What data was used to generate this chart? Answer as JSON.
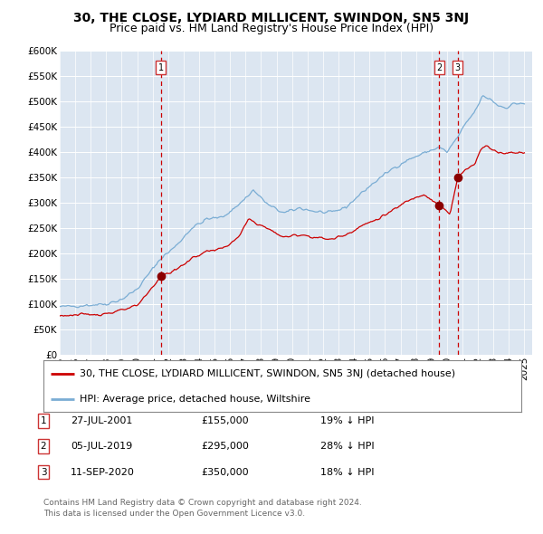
{
  "title": "30, THE CLOSE, LYDIARD MILLICENT, SWINDON, SN5 3NJ",
  "subtitle": "Price paid vs. HM Land Registry's House Price Index (HPI)",
  "legend_red": "30, THE CLOSE, LYDIARD MILLICENT, SWINDON, SN5 3NJ (detached house)",
  "legend_blue": "HPI: Average price, detached house, Wiltshire",
  "footer_line1": "Contains HM Land Registry data © Crown copyright and database right 2024.",
  "footer_line2": "This data is licensed under the Open Government Licence v3.0.",
  "table_rows": [
    [
      "1",
      "27-JUL-2001",
      "£155,000",
      "19% ↓ HPI"
    ],
    [
      "2",
      "05-JUL-2019",
      "£295,000",
      "28% ↓ HPI"
    ],
    [
      "3",
      "11-SEP-2020",
      "£350,000",
      "18% ↓ HPI"
    ]
  ],
  "t1_year": 2001.54,
  "t2_year": 2019.5,
  "t3_year": 2020.7,
  "t1_price": 155000,
  "t2_price": 295000,
  "t3_price": 350000,
  "ylim": [
    0,
    600000
  ],
  "xlim_left": 1995.0,
  "xlim_right": 2025.5,
  "yticks": [
    0,
    50000,
    100000,
    150000,
    200000,
    250000,
    300000,
    350000,
    400000,
    450000,
    500000,
    550000
  ],
  "plot_bg_color": "#dce6f1",
  "grid_color": "#ffffff",
  "red_color": "#cc0000",
  "blue_color": "#7aadd4",
  "dot_color": "#8b0000",
  "box_edge_color": "#cc3333",
  "title_fontsize": 10,
  "subtitle_fontsize": 9,
  "axis_fontsize": 7.5,
  "legend_fontsize": 8,
  "footer_fontsize": 6.5
}
